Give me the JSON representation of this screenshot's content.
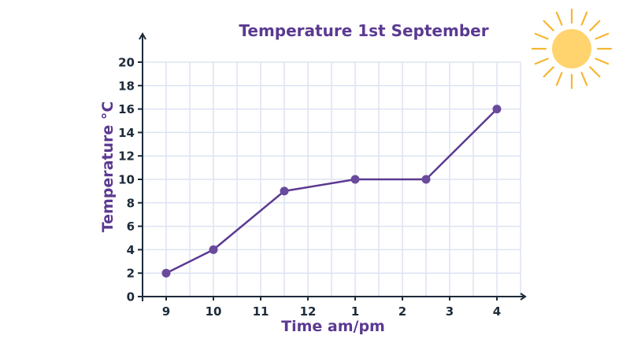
{
  "chart_data": {
    "type": "line",
    "title": "Temperature 1st September",
    "xlabel": "Time am/pm",
    "ylabel": "Temperature °C",
    "x_tick_labels": [
      "9",
      "10",
      "11",
      "12",
      "1",
      "2",
      "3",
      "4"
    ],
    "y_tick_labels": [
      "0",
      "2",
      "4",
      "6",
      "8",
      "10",
      "12",
      "14",
      "16",
      "18",
      "20"
    ],
    "ylim": [
      0,
      20
    ],
    "xlim_hours": [
      8.5,
      16.5
    ],
    "grid": true,
    "legend": null,
    "series": [
      {
        "name": "Temperature",
        "x": [
          "9:00",
          "10:00",
          "11:30",
          "13:00",
          "14:30",
          "16:00"
        ],
        "x_hours": [
          9,
          10,
          11.5,
          13,
          14.5,
          16
        ],
        "values": [
          2,
          4,
          9,
          10,
          10,
          16
        ]
      }
    ],
    "decoration": "sun-icon"
  },
  "colors": {
    "title": "#5b3a91",
    "line": "#5b3a91",
    "marker": "#6a4a9c",
    "axis": "#1d2b3a",
    "grid": "#dde3f2",
    "sun_body": "#ffd36e",
    "sun_rays": "#f5b731"
  }
}
